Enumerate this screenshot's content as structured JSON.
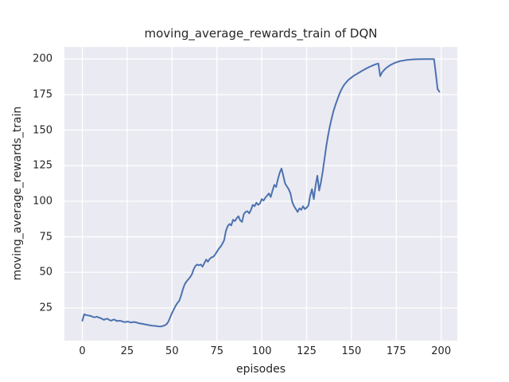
{
  "figure": {
    "title": "moving_average_rewards_train of DQN",
    "xlabel": "episodes",
    "ylabel": "moving_average_rewards_train"
  },
  "colors": {
    "figure_background": "#ffffff",
    "axes_background": "#eaeaf2",
    "grid": "#ffffff",
    "line": "#4c72b0",
    "text": "#262626"
  },
  "chart_data": {
    "type": "line",
    "title": "moving_average_rewards_train of DQN",
    "xlabel": "episodes",
    "ylabel": "moving_average_rewards_train",
    "legend": "none",
    "grid": true,
    "x_ticks": [
      0,
      25,
      50,
      75,
      100,
      125,
      150,
      175,
      200
    ],
    "y_ticks": [
      25,
      50,
      75,
      100,
      125,
      150,
      175,
      200
    ],
    "xlim": [
      -10,
      209
    ],
    "ylim": [
      2,
      208.5
    ],
    "line_color": "#4c72b0",
    "line_width": 2,
    "series": [
      {
        "name": "moving_average_rewards_train",
        "x_start": 0,
        "x_step": 1,
        "y": [
          16.0,
          20.5,
          20.0,
          19.8,
          19.5,
          19.2,
          18.6,
          18.4,
          18.8,
          18.3,
          17.9,
          17.3,
          16.6,
          17.2,
          17.4,
          16.5,
          16.0,
          16.6,
          16.8,
          15.8,
          15.9,
          16.0,
          15.6,
          15.2,
          15.0,
          15.4,
          15.2,
          14.7,
          15.0,
          15.1,
          14.8,
          14.4,
          14.1,
          13.9,
          13.7,
          13.4,
          13.2,
          12.9,
          12.7,
          12.5,
          12.4,
          12.3,
          12.1,
          11.9,
          12.0,
          12.3,
          12.8,
          13.6,
          15.5,
          18.5,
          21.5,
          24.0,
          26.5,
          28.5,
          30.0,
          33.5,
          38.0,
          41.5,
          43.5,
          45.0,
          46.5,
          48.5,
          52.0,
          54.5,
          55.5,
          55.0,
          55.5,
          54.0,
          56.5,
          59.0,
          57.5,
          59.5,
          60.5,
          61.0,
          62.5,
          64.5,
          66.5,
          68.0,
          70.0,
          72.5,
          79.0,
          82.5,
          84.0,
          83.0,
          87.0,
          86.0,
          88.0,
          89.5,
          86.5,
          85.5,
          91.0,
          92.5,
          93.0,
          91.5,
          94.0,
          97.5,
          96.5,
          99.0,
          97.5,
          98.5,
          101.5,
          100.5,
          102.5,
          104.0,
          105.5,
          103.0,
          107.5,
          111.5,
          110.0,
          115.5,
          120.0,
          123.0,
          118.0,
          112.5,
          110.5,
          108.5,
          105.5,
          99.5,
          96.5,
          94.5,
          92.5,
          95.0,
          94.0,
          96.5,
          94.5,
          95.5,
          97.0,
          104.0,
          108.5,
          101.5,
          111.0,
          118.0,
          107.5,
          113.5,
          121.0,
          130.0,
          139.0,
          146.5,
          153.0,
          158.5,
          163.5,
          167.5,
          171.0,
          174.5,
          177.5,
          180.0,
          182.0,
          183.5,
          185.0,
          186.0,
          187.0,
          188.0,
          188.8,
          189.5,
          190.3,
          191.0,
          191.8,
          192.5,
          193.2,
          193.8,
          194.5,
          195.0,
          195.6,
          196.1,
          196.5,
          196.8,
          188.0,
          190.5,
          192.0,
          193.3,
          194.3,
          195.2,
          196.0,
          196.6,
          197.2,
          197.7,
          198.1,
          198.5,
          198.8,
          199.0,
          199.2,
          199.4,
          199.5,
          199.6,
          199.7,
          199.8,
          199.8,
          199.9,
          199.9,
          199.9,
          200.0,
          200.0,
          200.0,
          200.0,
          200.0,
          200.0,
          200.0,
          190.0,
          179.0,
          177.0
        ]
      }
    ]
  }
}
